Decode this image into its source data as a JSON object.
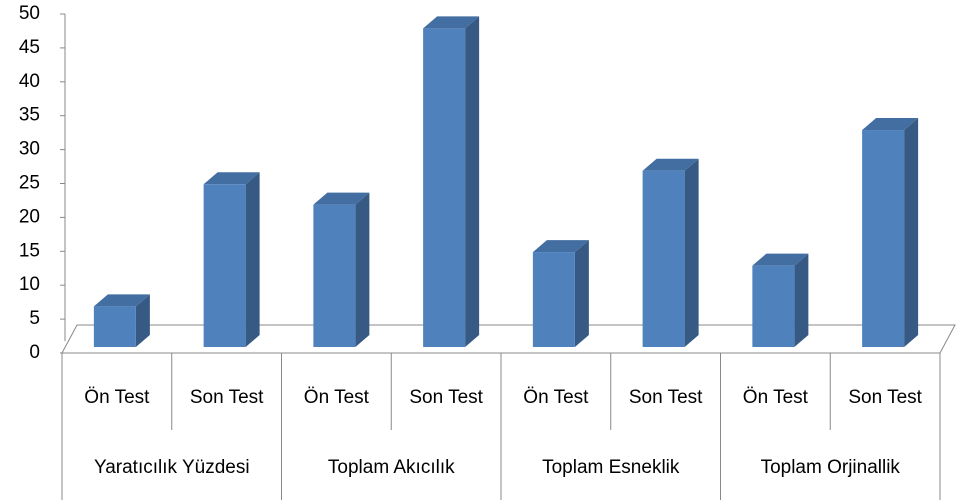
{
  "chart_data": {
    "type": "bar3d",
    "categories": [
      "Ön Test",
      "Son Test",
      "Ön Test",
      "Son Test",
      "Ön Test",
      "Son Test",
      "Ön Test",
      "Son Test"
    ],
    "groups": [
      "Yaratıcılık Yüzdesi",
      "Toplam Akıcılık",
      "Toplam Esneklik",
      "Toplam Orjinallik"
    ],
    "values": [
      6,
      24,
      21,
      47,
      14,
      26,
      12,
      32
    ],
    "color": "#4f81bd",
    "ylim": [
      0,
      50
    ],
    "yticks": [
      0,
      5,
      10,
      15,
      20,
      25,
      30,
      35,
      40,
      45,
      50
    ],
    "grid": false
  }
}
